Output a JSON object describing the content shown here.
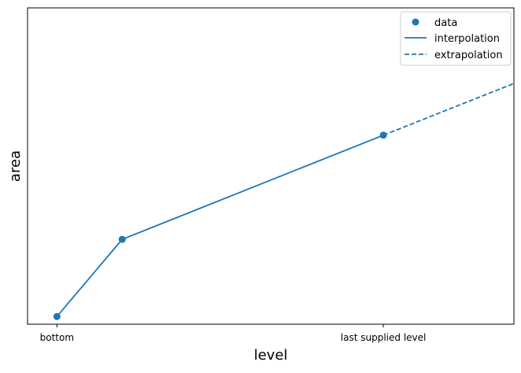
{
  "chart_data": {
    "type": "line",
    "title": "",
    "xlabel": "level",
    "ylabel": "area",
    "x_ticks": [
      {
        "x": 0,
        "label": "bottom"
      },
      {
        "x": 5,
        "label": "last supplied level"
      }
    ],
    "y_ticks": [],
    "xlim": [
      -0.45,
      7.0
    ],
    "ylim": [
      -0.2,
      8.0
    ],
    "grid": false,
    "legend_position": "top-right",
    "series": [
      {
        "name": "data",
        "kind": "scatter",
        "color": "#1f77b4",
        "points": [
          {
            "x": 0,
            "y": 0
          },
          {
            "x": 1,
            "y": 2
          },
          {
            "x": 5,
            "y": 4.7
          }
        ]
      },
      {
        "name": "interpolation",
        "kind": "line",
        "style": "solid",
        "color": "#1f77b4",
        "points": [
          {
            "x": 0,
            "y": 0
          },
          {
            "x": 1,
            "y": 2
          },
          {
            "x": 5,
            "y": 4.7
          }
        ]
      },
      {
        "name": "extrapolation",
        "kind": "line",
        "style": "dashed",
        "color": "#1f77b4",
        "points": [
          {
            "x": 5,
            "y": 4.7
          },
          {
            "x": 7.0,
            "y": 6.04
          }
        ]
      }
    ]
  }
}
